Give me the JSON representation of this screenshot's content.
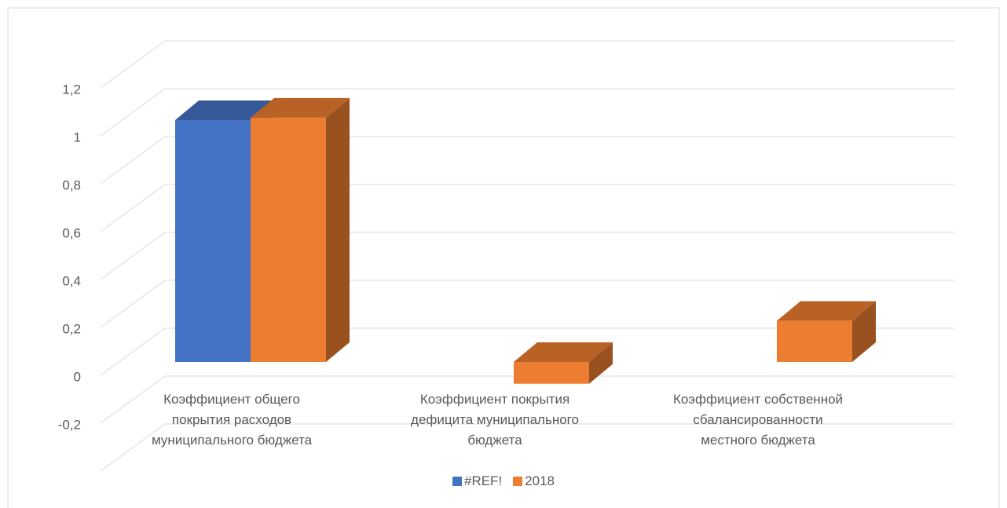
{
  "chart_data": {
    "type": "bar3d",
    "categories": [
      "Коэффициент общего\nпокрытия расходов\nмуниципального бюджета",
      "Коэффициент покрытия\nдефицита муниципального\nбюджета",
      "Коэффициент собственной\nсбалансированности\nместного бюджета"
    ],
    "series": [
      {
        "name": "#REF!",
        "color": "#4472c4",
        "values": [
          1.0,
          null,
          null
        ]
      },
      {
        "name": "2018",
        "color": "#ed7d31",
        "values": [
          1.01,
          -0.09,
          0.17
        ]
      }
    ],
    "ylim": [
      -0.2,
      1.4
    ],
    "yticks": [
      {
        "value": -0.2,
        "label": "-0,2"
      },
      0,
      {
        "value": 0.2,
        "label": "0,2"
      },
      {
        "value": 0.4,
        "label": "0,4"
      },
      {
        "value": 0.6,
        "label": "0,6"
      },
      {
        "value": 0.8,
        "label": "0,8"
      },
      1,
      {
        "value": 1.2,
        "label": "1,2"
      }
    ],
    "grid": true,
    "legend": "bottom"
  }
}
